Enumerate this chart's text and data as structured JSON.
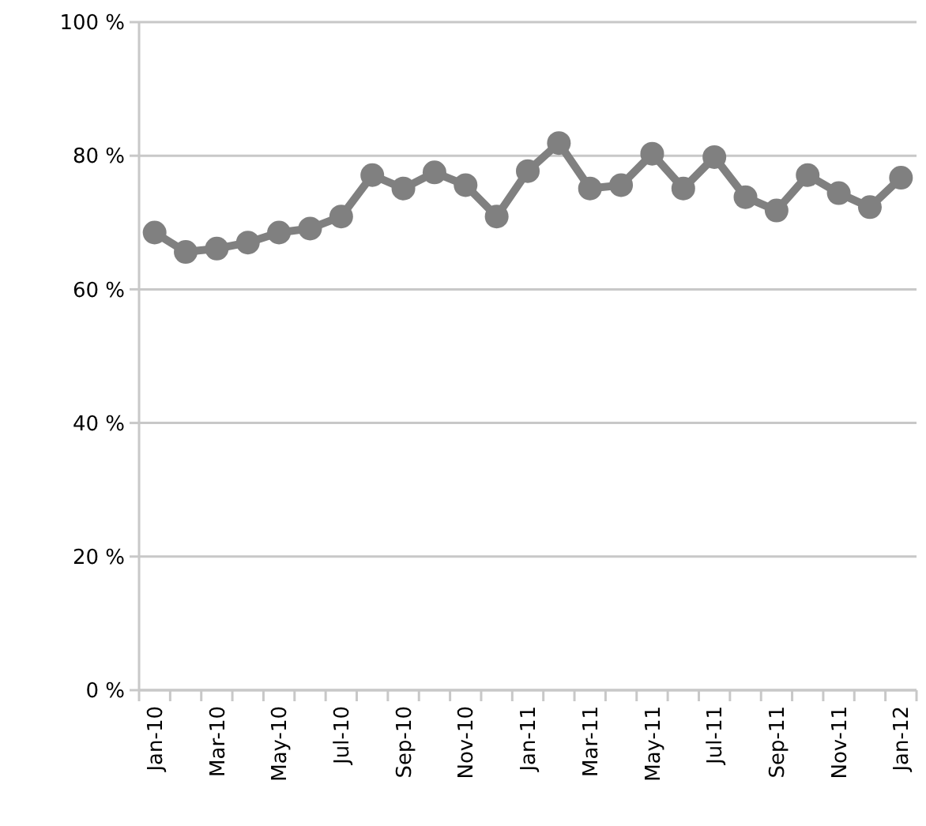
{
  "chart_data": {
    "type": "line",
    "categories": [
      "Jan-10",
      null,
      "Mar-10",
      null,
      "May-10",
      null,
      "Jul-10",
      null,
      "Sep-10",
      null,
      "Nov-10",
      null,
      "Jan-11",
      null,
      "Mar-11",
      null,
      "May-11",
      null,
      "Jul-11",
      null,
      "Sep-11",
      null,
      "Nov-11",
      null,
      "Jan-12"
    ],
    "series": [
      {
        "color": "#808080",
        "values": [
          68.5,
          65.6,
          66.1,
          67.0,
          68.5,
          69.1,
          70.9,
          77.1,
          75.1,
          77.5,
          75.6,
          70.9,
          77.7,
          81.9,
          75.1,
          75.6,
          80.3,
          75.1,
          79.8,
          73.8,
          71.8,
          77.1,
          74.4,
          72.3,
          76.7
        ]
      }
    ],
    "ylim": [
      0,
      100
    ],
    "yticks": [
      {
        "value": 0,
        "label": "0 %"
      },
      {
        "value": 20,
        "label": "20 %"
      },
      {
        "value": 40,
        "label": "40 %"
      },
      {
        "value": 60,
        "label": "60 %"
      },
      {
        "value": 80,
        "label": "80 %"
      },
      {
        "value": 100,
        "label": "100 %"
      }
    ],
    "grid": "y",
    "marker": "circle",
    "line_style": "solid"
  }
}
